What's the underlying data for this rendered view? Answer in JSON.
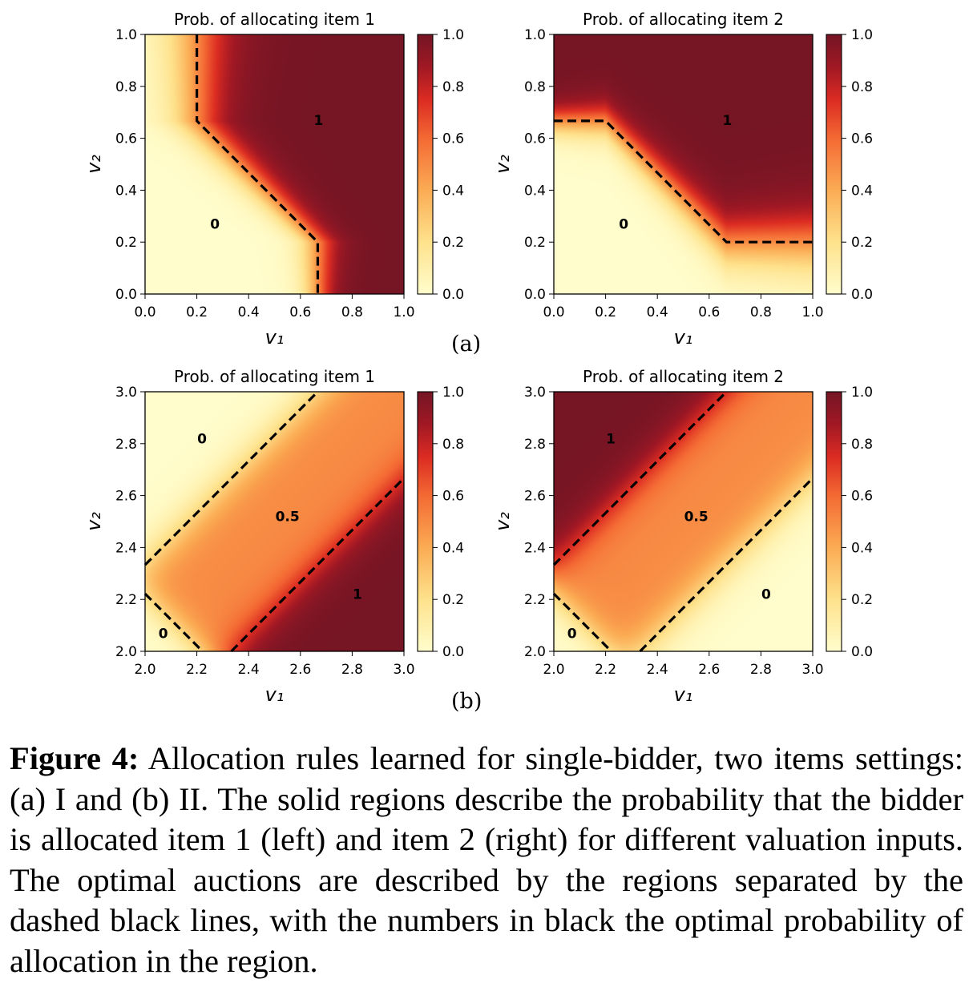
{
  "chart_data": [
    {
      "type": "heatmap",
      "id": "a1",
      "group": "(a)",
      "title": "Prob. of allocating item 1",
      "xlabel": "v₁",
      "ylabel": "v₂",
      "xlim": [
        0,
        1
      ],
      "ylim": [
        0,
        1
      ],
      "xticks": [
        "0.0",
        "0.2",
        "0.4",
        "0.6",
        "0.8",
        "1.0"
      ],
      "yticks": [
        "0.0",
        "0.2",
        "0.4",
        "0.6",
        "0.8",
        "1.0"
      ],
      "colorbar": {
        "range": [
          0,
          1
        ],
        "ticks": [
          "0.0",
          "0.2",
          "0.4",
          "0.6",
          "0.8",
          "1.0"
        ],
        "colormap": "YlOrRd"
      },
      "boundaries": [
        [
          [
            0.2,
            1.0
          ],
          [
            0.2,
            0.667
          ],
          [
            0.667,
            0.2
          ],
          [
            0.667,
            0.0
          ]
        ]
      ],
      "regions": [
        {
          "label": "1",
          "x": 0.67,
          "y": 0.67
        },
        {
          "label": "0",
          "x": 0.27,
          "y": 0.27
        }
      ]
    },
    {
      "type": "heatmap",
      "id": "a2",
      "group": "(a)",
      "title": "Prob. of allocating item 2",
      "xlabel": "v₁",
      "ylabel": "v₂",
      "xlim": [
        0,
        1
      ],
      "ylim": [
        0,
        1
      ],
      "xticks": [
        "0.0",
        "0.2",
        "0.4",
        "0.6",
        "0.8",
        "1.0"
      ],
      "yticks": [
        "0.0",
        "0.2",
        "0.4",
        "0.6",
        "0.8",
        "1.0"
      ],
      "colorbar": {
        "range": [
          0,
          1
        ],
        "ticks": [
          "0.0",
          "0.2",
          "0.4",
          "0.6",
          "0.8",
          "1.0"
        ],
        "colormap": "YlOrRd"
      },
      "boundaries": [
        [
          [
            0.0,
            0.667
          ],
          [
            0.2,
            0.667
          ],
          [
            0.667,
            0.2
          ],
          [
            1.0,
            0.2
          ]
        ]
      ],
      "regions": [
        {
          "label": "1",
          "x": 0.67,
          "y": 0.67
        },
        {
          "label": "0",
          "x": 0.27,
          "y": 0.27
        }
      ]
    },
    {
      "type": "heatmap",
      "id": "b1",
      "group": "(b)",
      "title": "Prob. of allocating item 1",
      "xlabel": "v₁",
      "ylabel": "v₂",
      "xlim": [
        2,
        3
      ],
      "ylim": [
        2,
        3
      ],
      "xticks": [
        "2.0",
        "2.2",
        "2.4",
        "2.6",
        "2.8",
        "3.0"
      ],
      "yticks": [
        "2.0",
        "2.2",
        "2.4",
        "2.6",
        "2.8",
        "3.0"
      ],
      "colorbar": {
        "range": [
          0,
          1
        ],
        "ticks": [
          "0.0",
          "0.2",
          "0.4",
          "0.6",
          "0.8",
          "1.0"
        ],
        "colormap": "YlOrRd"
      },
      "boundaries": [
        [
          [
            2.0,
            2.333
          ],
          [
            2.667,
            3.0
          ]
        ],
        [
          [
            2.333,
            2.0
          ],
          [
            3.0,
            2.667
          ]
        ],
        [
          [
            2.0,
            2.222
          ],
          [
            2.222,
            2.0
          ]
        ]
      ],
      "regions": [
        {
          "label": "0",
          "x": 2.22,
          "y": 2.82
        },
        {
          "label": "0.5",
          "x": 2.55,
          "y": 2.52
        },
        {
          "label": "1",
          "x": 2.82,
          "y": 2.22
        },
        {
          "label": "0",
          "x": 2.07,
          "y": 2.07
        }
      ]
    },
    {
      "type": "heatmap",
      "id": "b2",
      "group": "(b)",
      "title": "Prob. of allocating item 2",
      "xlabel": "v₁",
      "ylabel": "v₂",
      "xlim": [
        2,
        3
      ],
      "ylim": [
        2,
        3
      ],
      "xticks": [
        "2.0",
        "2.2",
        "2.4",
        "2.6",
        "2.8",
        "3.0"
      ],
      "yticks": [
        "2.0",
        "2.2",
        "2.4",
        "2.6",
        "2.8",
        "3.0"
      ],
      "colorbar": {
        "range": [
          0,
          1
        ],
        "ticks": [
          "0.0",
          "0.2",
          "0.4",
          "0.6",
          "0.8",
          "1.0"
        ],
        "colormap": "YlOrRd"
      },
      "boundaries": [
        [
          [
            2.0,
            2.333
          ],
          [
            2.667,
            3.0
          ]
        ],
        [
          [
            2.333,
            2.0
          ],
          [
            3.0,
            2.667
          ]
        ],
        [
          [
            2.0,
            2.222
          ],
          [
            2.222,
            2.0
          ]
        ]
      ],
      "regions": [
        {
          "label": "1",
          "x": 2.22,
          "y": 2.82
        },
        {
          "label": "0.5",
          "x": 2.55,
          "y": 2.52
        },
        {
          "label": "0",
          "x": 2.82,
          "y": 2.22
        },
        {
          "label": "0",
          "x": 2.07,
          "y": 2.07
        }
      ]
    }
  ],
  "subfigure_labels": {
    "a": "(a)",
    "b": "(b)"
  },
  "caption": {
    "label": "Figure 4:",
    "text": " Allocation rules learned for single-bidder, two items settings: (a) I and (b) II. The solid regions describe the probability that the bidder is allocated item 1 (left) and item 2 (right) for different valuation inputs. The optimal auctions are described by the regions separated by the dashed black lines, with the numbers in black the optimal probability of allocation in the region."
  }
}
